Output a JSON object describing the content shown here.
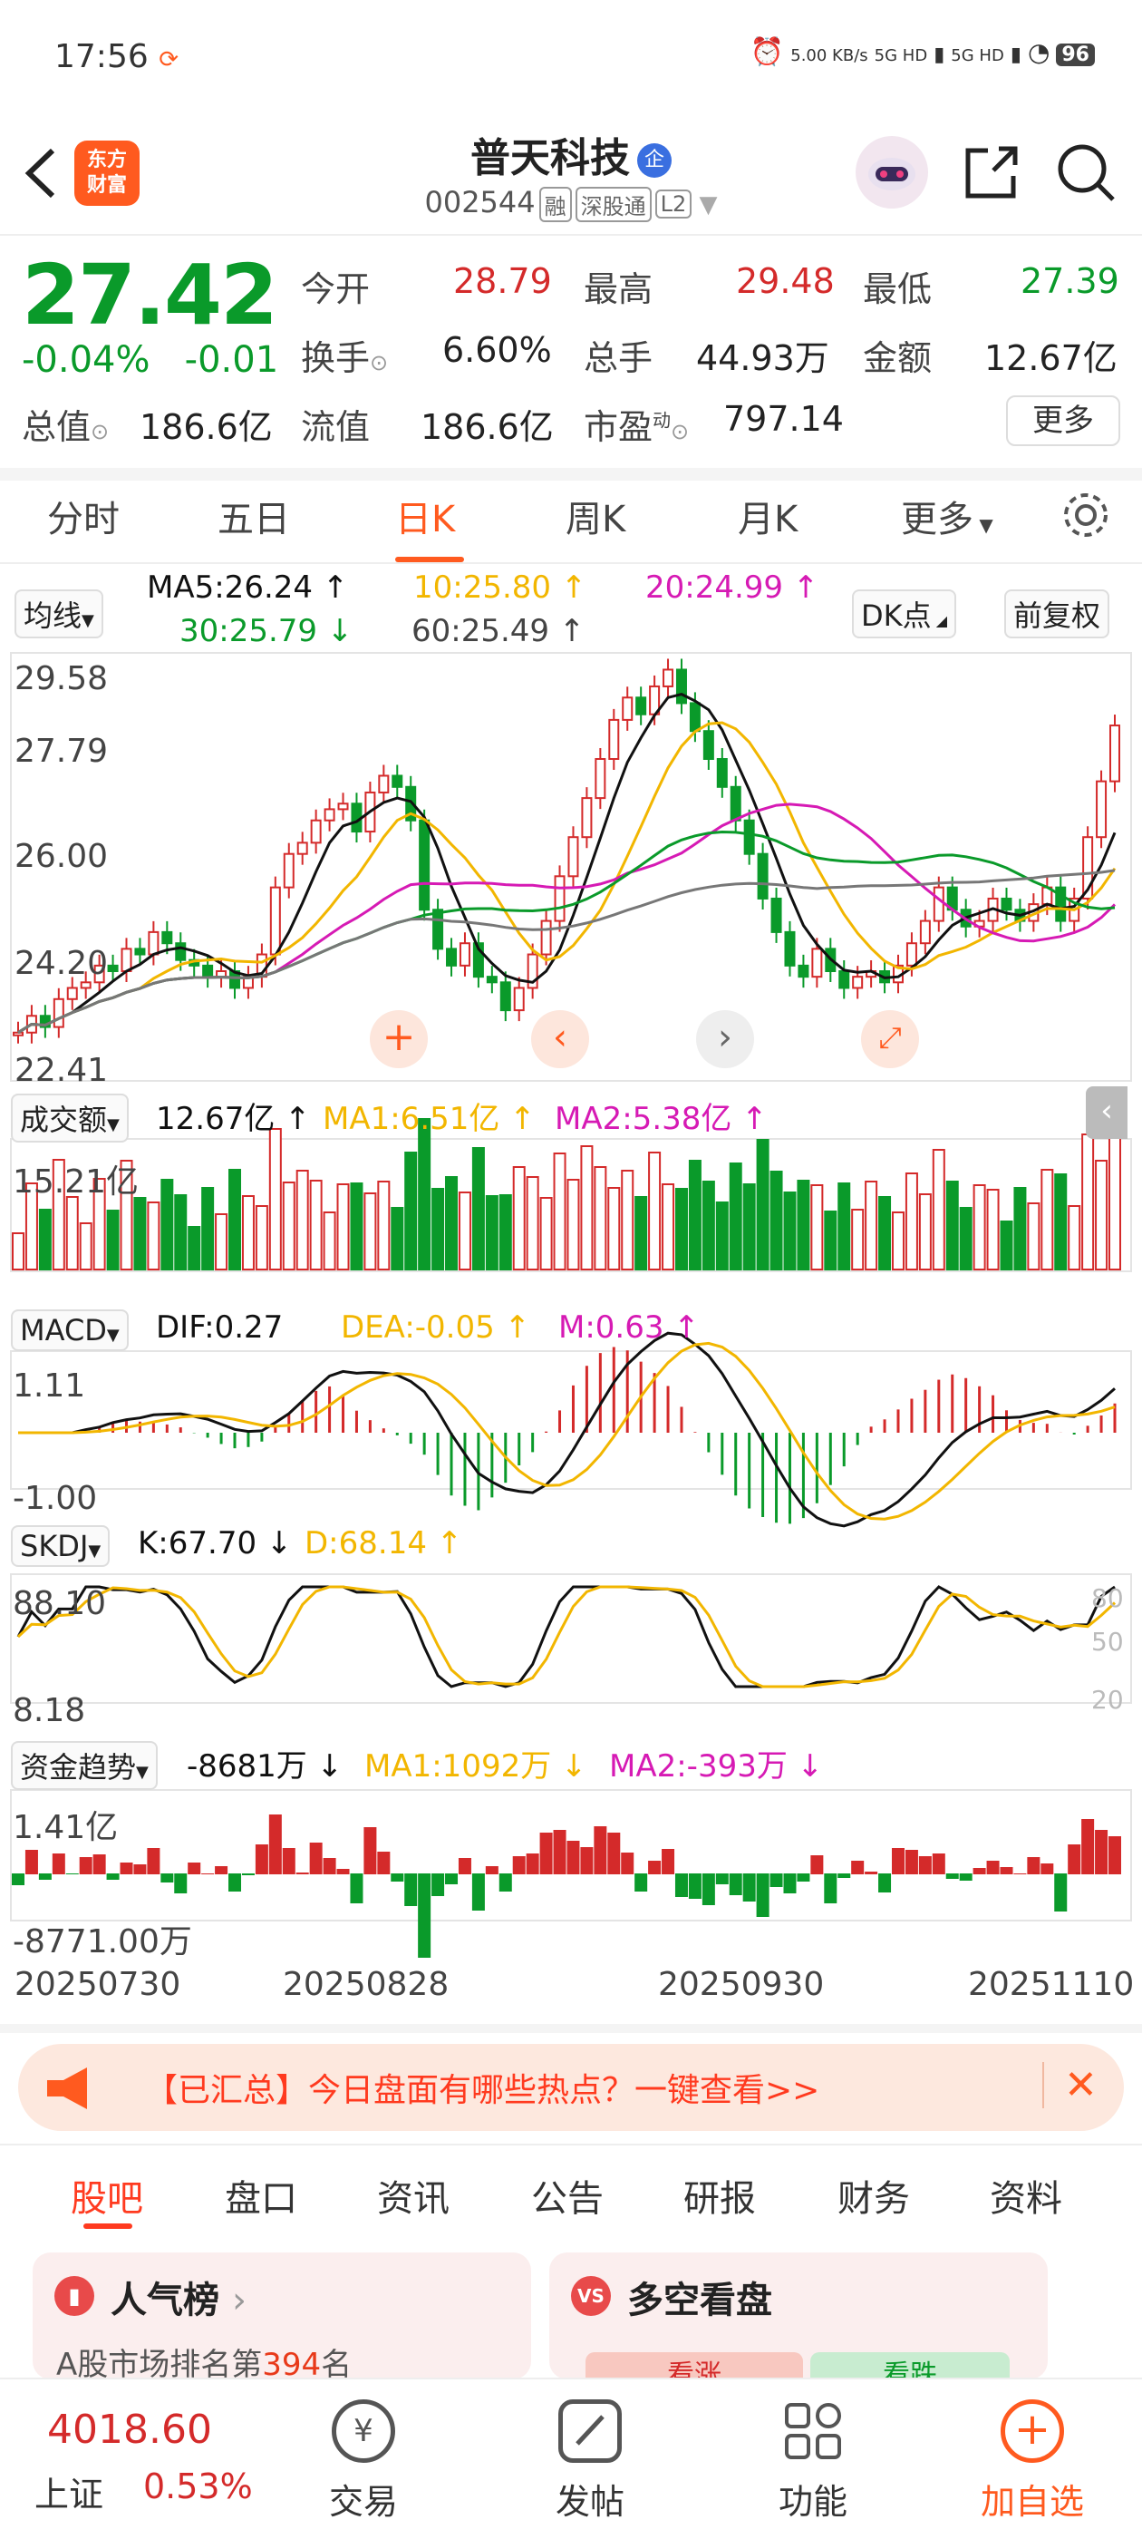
{
  "status_bar": {
    "time": "17:56",
    "net_speed": "5.00 KB/s",
    "signal1": "5G HD",
    "signal2": "5G HD",
    "battery": "96"
  },
  "header": {
    "logo_text": "东方财富",
    "stock_name": "普天科技",
    "qi_badge": "企",
    "code": "002544",
    "tags": [
      "融",
      "深股通",
      "L2"
    ]
  },
  "quote": {
    "price": "27.42",
    "pct": "-0.04%",
    "chg": "-0.01",
    "open_label": "今开",
    "open": "28.79",
    "high_label": "最高",
    "high": "29.48",
    "low_label": "最低",
    "low": "27.39",
    "turnover_label": "换手",
    "turnover": "6.60%",
    "vol_label": "总手",
    "vol": "44.93万",
    "amount_label": "金额",
    "amount": "12.67亿",
    "mktcap_label": "总值",
    "mktcap": "186.6亿",
    "float_label": "流值",
    "float": "186.6亿",
    "pe_label": "市盈",
    "pe_sup": "动",
    "pe": "797.14",
    "more": "更多"
  },
  "tabs": [
    "分时",
    "五日",
    "日K",
    "周K",
    "月K",
    "更多"
  ],
  "active_tab": "日K",
  "kline": {
    "ma_selector": "均线",
    "ma5": "MA5:26.24",
    "ma10": "10:25.80",
    "ma20": "20:24.99",
    "ma30": "30:25.79",
    "ma60": "60:25.49",
    "dk_btn": "DK点",
    "fq_btn": "前复权",
    "price_ticks": [
      "29.58",
      "27.79",
      "26.00",
      "24.20",
      "22.41"
    ]
  },
  "volume": {
    "selector": "成交额",
    "value": "12.67亿",
    "ma1": "MA1:6.51亿",
    "ma2": "MA2:5.38亿",
    "tick": "15.21亿"
  },
  "macd": {
    "selector": "MACD",
    "dif": "DIF:0.27",
    "dea": "DEA:-0.05",
    "m": "M:0.63",
    "ticks": [
      "1.11",
      "-1.00"
    ]
  },
  "skdj": {
    "selector": "SKDJ",
    "k": "K:67.70",
    "d": "D:68.14",
    "ticks": [
      "88.10",
      "8.18"
    ],
    "right_ticks": [
      "80",
      "50",
      "20"
    ]
  },
  "fund": {
    "selector": "资金趋势",
    "value": "-8681万",
    "ma1": "MA1:1092万",
    "ma2": "MA2:-393万",
    "ticks": [
      "1.41亿",
      "-8771.00万"
    ]
  },
  "dates": [
    "20250730",
    "20250828",
    "20250930",
    "20251110"
  ],
  "banner": {
    "text": "【已汇总】今日盘面有哪些热点？一键查看>>"
  },
  "bottom_tabs": [
    "股吧",
    "盘口",
    "资讯",
    "公告",
    "研报",
    "财务",
    "资料"
  ],
  "active_bottom_tab": "股吧",
  "cards": {
    "left_title": "人气榜",
    "left_sub_prefix": "A股市场排名第",
    "left_rank": "394",
    "left_sub_suffix": "名",
    "right_title": "多空看盘",
    "right_up": "看涨",
    "right_down": "看跌"
  },
  "footer": {
    "index_value": "4018.60",
    "index_name": "上证",
    "index_pct": "0.53%",
    "trade": "交易",
    "post": "发帖",
    "func": "功能",
    "add": "加自选"
  },
  "colors": {
    "up": "#d42a2a",
    "down": "#0a9a2a",
    "accent": "#ff5a1f",
    "ma5": "#111111",
    "ma10": "#f2b600",
    "ma20": "#d61ab4",
    "ma30": "#0a9a2a",
    "ma60": "#777777"
  }
}
